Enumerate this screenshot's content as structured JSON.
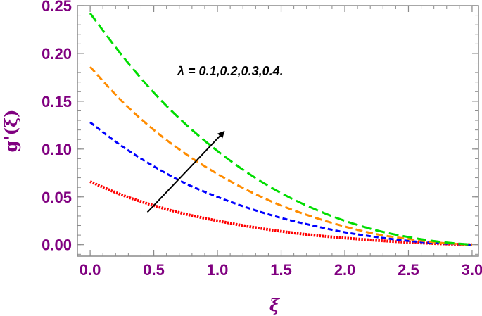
{
  "colors": {
    "axis": "#800080",
    "frame": "#8a8a8a",
    "annotation_text": "#000000",
    "arrow": "#000000"
  },
  "chart_data": {
    "type": "line",
    "title": "",
    "xlabel": "ξ",
    "ylabel": "g'(ξ)",
    "xlim": [
      -0.1,
      3.05
    ],
    "ylim": [
      -0.012,
      0.25
    ],
    "x_ticks": [
      0.0,
      0.5,
      1.0,
      1.5,
      2.0,
      2.5,
      3.0
    ],
    "x_tick_labels": [
      "0.0",
      "0.5",
      "1.0",
      "1.5",
      "2.0",
      "2.5",
      "3.0"
    ],
    "y_ticks": [
      0.0,
      0.05,
      0.1,
      0.15,
      0.2,
      0.25
    ],
    "y_tick_labels": [
      "0.00",
      "0.05",
      "0.10",
      "0.15",
      "0.20",
      "0.25"
    ],
    "grid": false,
    "annotation": {
      "text": "λ = 0.1,0.2,0.3,0.4.",
      "arrow_from": [
        0.45,
        0.034
      ],
      "arrow_to": [
        1.05,
        0.118
      ]
    },
    "x": [
      0.0,
      0.25,
      0.5,
      0.75,
      1.0,
      1.25,
      1.5,
      1.75,
      2.0,
      2.25,
      2.5,
      2.75,
      3.0
    ],
    "series": [
      {
        "color": "#ff0000",
        "style": "dotted",
        "values": [
          0.066,
          0.052,
          0.041,
          0.032,
          0.025,
          0.019,
          0.014,
          0.01,
          0.007,
          0.0045,
          0.0025,
          0.001,
          0.0
        ]
      },
      {
        "color": "#0000ff",
        "style": "short-dash",
        "values": [
          0.128,
          0.103,
          0.082,
          0.064,
          0.05,
          0.038,
          0.028,
          0.02,
          0.013,
          0.008,
          0.004,
          0.0015,
          0.0
        ]
      },
      {
        "color": "#ff8c00",
        "style": "dash",
        "values": [
          0.186,
          0.15,
          0.12,
          0.095,
          0.074,
          0.056,
          0.041,
          0.029,
          0.019,
          0.011,
          0.006,
          0.002,
          0.0
        ]
      },
      {
        "color": "#00dd00",
        "style": "long-dash",
        "values": [
          0.242,
          0.198,
          0.159,
          0.126,
          0.098,
          0.074,
          0.054,
          0.038,
          0.025,
          0.015,
          0.008,
          0.003,
          0.0
        ]
      }
    ]
  }
}
